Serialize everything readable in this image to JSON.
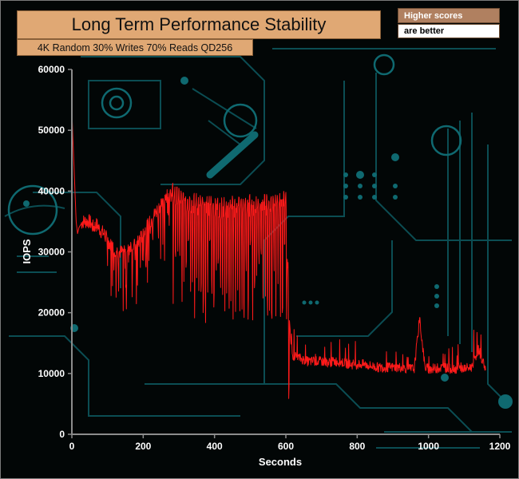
{
  "header": {
    "title": "Long Term Performance Stability",
    "subtitle": "4K Random 30% Writes 70% Reads QD256"
  },
  "note": {
    "line1": "Higher scores",
    "line2": "are better"
  },
  "colors": {
    "series": "#ff1a1a",
    "axis": "#8c8c8c",
    "title_bg": "#e0a874",
    "circuit": "#0f5f66"
  },
  "chart_data": {
    "type": "line",
    "title": "Long Term Performance Stability",
    "subtitle": "4K Random 30% Writes 70% Reads QD256",
    "xlabel": "Seconds",
    "ylabel": "IOPS",
    "xlim": [
      0,
      1200
    ],
    "ylim": [
      0,
      60000
    ],
    "x_ticks": [
      0,
      200,
      400,
      600,
      800,
      1000,
      1200
    ],
    "y_ticks": [
      0,
      10000,
      20000,
      30000,
      40000,
      50000,
      60000
    ],
    "x_tick_labels": [
      "0",
      "200",
      "400",
      "600",
      "800",
      "1000",
      "1200"
    ],
    "y_tick_labels": [
      "0",
      "10000",
      "20000",
      "30000",
      "40000",
      "50000",
      "60000"
    ],
    "grid": false,
    "legend": "none",
    "series": [
      {
        "x": [
          0,
          2,
          4,
          6,
          8,
          10,
          12,
          14,
          16,
          18,
          20,
          25,
          30,
          40,
          50,
          60,
          70,
          80,
          90,
          100,
          110,
          120,
          130,
          140,
          150,
          160,
          170,
          180,
          190,
          200,
          210,
          220,
          230,
          240,
          250,
          260,
          270,
          280,
          290,
          300,
          320,
          340,
          360,
          380,
          400,
          420,
          440,
          460,
          480,
          500,
          520,
          540,
          560,
          580,
          600,
          610,
          615,
          620,
          640,
          660,
          680,
          700,
          720,
          740,
          760,
          780,
          800,
          820,
          840,
          860,
          880,
          900,
          920,
          940,
          960,
          975,
          990,
          1000,
          1020,
          1040,
          1060,
          1080,
          1100,
          1120,
          1140,
          1160
        ],
        "y": [
          54000,
          50000,
          47000,
          44000,
          41000,
          38000,
          35000,
          34000,
          33000,
          33500,
          34000,
          34500,
          35000,
          35000,
          35000,
          34000,
          34500,
          33500,
          33000,
          32000,
          31000,
          30500,
          30000,
          30000,
          30500,
          31000,
          31000,
          31000,
          32000,
          33000,
          34000,
          35000,
          36000,
          37000,
          38000,
          39000,
          39500,
          39000,
          38500,
          38000,
          37500,
          37500,
          37000,
          37000,
          37000,
          36500,
          36500,
          37000,
          37000,
          37000,
          37000,
          37000,
          37500,
          37500,
          38000,
          18000,
          15000,
          13000,
          12500,
          12000,
          12000,
          12000,
          11800,
          12000,
          11800,
          11500,
          11500,
          11500,
          11200,
          11000,
          11000,
          11000,
          11000,
          10800,
          10800,
          19000,
          11000,
          10800,
          10800,
          11000,
          10800,
          10800,
          10800,
          11000,
          14000,
          10800
        ]
      }
    ]
  }
}
